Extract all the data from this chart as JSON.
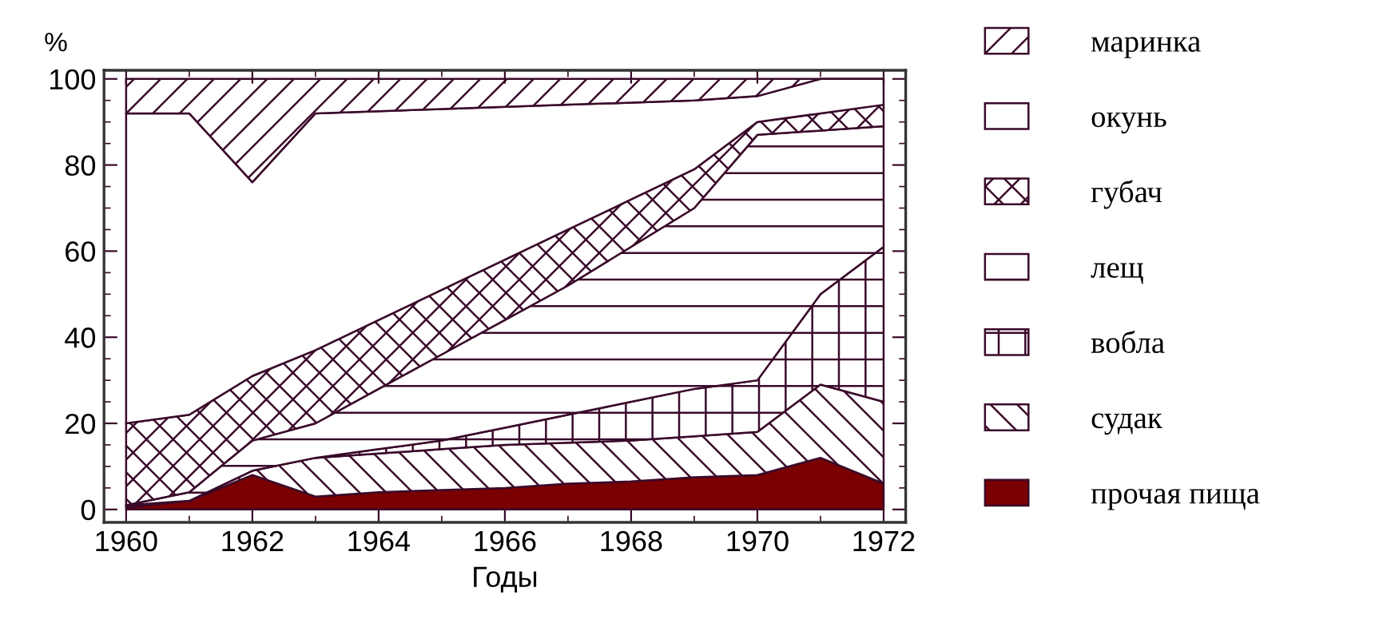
{
  "chart_data": {
    "type": "area",
    "stacked": true,
    "xlabel": "Годы",
    "ylabel": "%",
    "x": [
      1960,
      1961,
      1962,
      1963,
      1964,
      1965,
      1966,
      1967,
      1968,
      1969,
      1970,
      1971,
      1972
    ],
    "xlim": [
      1959.65,
      1972.35
    ],
    "xticks": [
      1960,
      1962,
      1964,
      1966,
      1968,
      1970,
      1972
    ],
    "ylim": [
      -3,
      102
    ],
    "yticks": [
      0,
      20,
      40,
      60,
      80,
      100
    ],
    "legend": "right",
    "grid": false,
    "series": [
      {
        "name": "прочая пища",
        "color": "#7a0000",
        "values": [
          0.5,
          2,
          8,
          3,
          4,
          4.5,
          5,
          6,
          6.5,
          7.5,
          8,
          12,
          6
        ]
      },
      {
        "name": "судак",
        "color": "#3a0a2a",
        "values": [
          0.5,
          0,
          1,
          9,
          9,
          9.5,
          10,
          9.5,
          9.5,
          9.5,
          10,
          17,
          19
        ]
      },
      {
        "name": "вобла",
        "color": "#3a0a2a",
        "values": [
          0,
          0,
          0,
          0,
          1,
          2,
          4,
          6.5,
          9,
          11,
          12,
          21,
          36
        ]
      },
      {
        "name": "лещ",
        "color": "#3a0a2a",
        "values": [
          0,
          2,
          7,
          8,
          14,
          20,
          25,
          30,
          36,
          42,
          57,
          38,
          28
        ]
      },
      {
        "name": "губач",
        "color": "#3a0a2a",
        "values": [
          19,
          18,
          15,
          17,
          16,
          15,
          14,
          13,
          11,
          9,
          3,
          4,
          5
        ]
      },
      {
        "name": "окунь",
        "color": "#ffffff",
        "values": [
          72,
          70,
          45,
          55,
          48.5,
          42,
          35.5,
          29,
          22.5,
          16,
          6,
          8,
          6
        ]
      },
      {
        "name": "маринка",
        "color": "#3a0a2a",
        "values": [
          8,
          8,
          24,
          8,
          7.5,
          7,
          6.5,
          6,
          5.5,
          5,
          4,
          0,
          0
        ]
      }
    ]
  }
}
